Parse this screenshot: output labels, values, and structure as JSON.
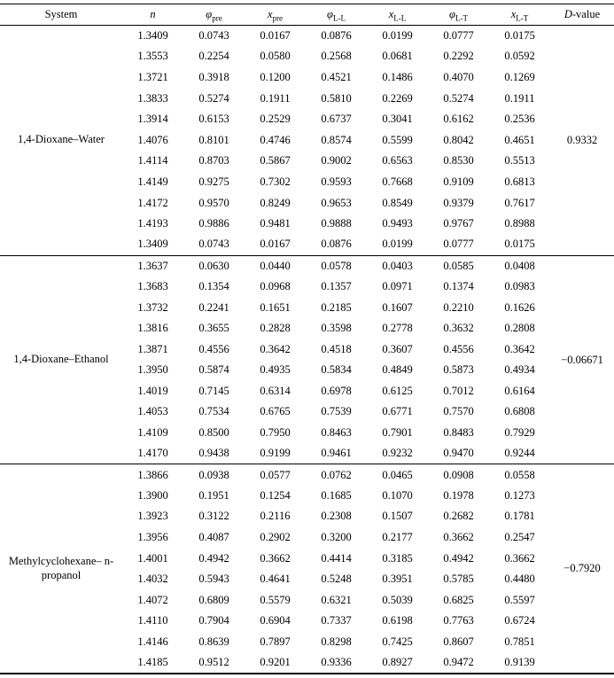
{
  "table": {
    "headers": [
      {
        "name": "system",
        "base": "System",
        "italic": false,
        "sub": "",
        "suffix": ""
      },
      {
        "name": "n",
        "base": "n",
        "italic": true,
        "sub": "",
        "suffix": ""
      },
      {
        "name": "phi-pre",
        "base": "φ",
        "italic": true,
        "sub": "pre",
        "suffix": ""
      },
      {
        "name": "x-pre",
        "base": "x",
        "italic": true,
        "sub": "pre",
        "suffix": ""
      },
      {
        "name": "phi-l-l",
        "base": "φ",
        "italic": true,
        "sub": "L-L",
        "suffix": ""
      },
      {
        "name": "x-l-l",
        "base": "x",
        "italic": true,
        "sub": "L-L",
        "suffix": ""
      },
      {
        "name": "phi-l-t",
        "base": "φ",
        "italic": true,
        "sub": "L-T",
        "suffix": ""
      },
      {
        "name": "x-l-t",
        "base": "x",
        "italic": true,
        "sub": "L-T",
        "suffix": ""
      },
      {
        "name": "d-value",
        "base": "D",
        "italic": true,
        "sub": "",
        "suffix": "-value"
      }
    ],
    "sections": [
      {
        "system": "1,4-Dioxane–Water",
        "d_value": "0.9332",
        "rows": [
          [
            "1.3409",
            "0.0743",
            "0.0167",
            "0.0876",
            "0.0199",
            "0.0777",
            "0.0175"
          ],
          [
            "1.3553",
            "0.2254",
            "0.0580",
            "0.2568",
            "0.0681",
            "0.2292",
            "0.0592"
          ],
          [
            "1.3721",
            "0.3918",
            "0.1200",
            "0.4521",
            "0.1486",
            "0.4070",
            "0.1269"
          ],
          [
            "1.3833",
            "0.5274",
            "0.1911",
            "0.5810",
            "0.2269",
            "0.5274",
            "0.1911"
          ],
          [
            "1.3914",
            "0.6153",
            "0.2529",
            "0.6737",
            "0.3041",
            "0.6162",
            "0.2536"
          ],
          [
            "1.4076",
            "0.8101",
            "0.4746",
            "0.8574",
            "0.5599",
            "0.8042",
            "0.4651"
          ],
          [
            "1.4114",
            "0.8703",
            "0.5867",
            "0.9002",
            "0.6563",
            "0.8530",
            "0.5513"
          ],
          [
            "1.4149",
            "0.9275",
            "0.7302",
            "0.9593",
            "0.7668",
            "0.9109",
            "0.6813"
          ],
          [
            "1.4172",
            "0.9570",
            "0.8249",
            "0.9653",
            "0.8549",
            "0.9379",
            "0.7617"
          ],
          [
            "1.4193",
            "0.9886",
            "0.9481",
            "0.9888",
            "0.9493",
            "0.9767",
            "0.8988"
          ],
          [
            "1.3409",
            "0.0743",
            "0.0167",
            "0.0876",
            "0.0199",
            "0.0777",
            "0.0175"
          ]
        ]
      },
      {
        "system": "1,4-Dioxane–Ethanol",
        "d_value": "−0.06671",
        "rows": [
          [
            "1.3637",
            "0.0630",
            "0.0440",
            "0.0578",
            "0.0403",
            "0.0585",
            "0.0408"
          ],
          [
            "1.3683",
            "0.1354",
            "0.0968",
            "0.1357",
            "0.0971",
            "0.1374",
            "0.0983"
          ],
          [
            "1.3732",
            "0.2241",
            "0.1651",
            "0.2185",
            "0.1607",
            "0.2210",
            "0.1626"
          ],
          [
            "1.3816",
            "0.3655",
            "0.2828",
            "0.3598",
            "0.2778",
            "0.3632",
            "0.2808"
          ],
          [
            "1.3871",
            "0.4556",
            "0.3642",
            "0.4518",
            "0.3607",
            "0.4556",
            "0.3642"
          ],
          [
            "1.3950",
            "0.5874",
            "0.4935",
            "0.5834",
            "0.4849",
            "0.5873",
            "0.4934"
          ],
          [
            "1.4019",
            "0.7145",
            "0.6314",
            "0.6978",
            "0.6125",
            "0.7012",
            "0.6164"
          ],
          [
            "1.4053",
            "0.7534",
            "0.6765",
            "0.7539",
            "0.6771",
            "0.7570",
            "0.6808"
          ],
          [
            "1.4109",
            "0.8500",
            "0.7950",
            "0.8463",
            "0.7901",
            "0.8483",
            "0.7929"
          ],
          [
            "1.4170",
            "0.9438",
            "0.9199",
            "0.9461",
            "0.9232",
            "0.9470",
            "0.9244"
          ]
        ]
      },
      {
        "system": "Methylcyclohexane– n-propanol",
        "d_value": "−0.7920",
        "rows": [
          [
            "1.3866",
            "0.0938",
            "0.0577",
            "0.0762",
            "0.0465",
            "0.0908",
            "0.0558"
          ],
          [
            "1.3900",
            "0.1951",
            "0.1254",
            "0.1685",
            "0.1070",
            "0.1978",
            "0.1273"
          ],
          [
            "1.3923",
            "0.3122",
            "0.2116",
            "0.2308",
            "0.1507",
            "0.2682",
            "0.1781"
          ],
          [
            "1.3956",
            "0.4087",
            "0.2902",
            "0.3200",
            "0.2177",
            "0.3662",
            "0.2547"
          ],
          [
            "1.4001",
            "0.4942",
            "0.3662",
            "0.4414",
            "0.3185",
            "0.4942",
            "0.3662"
          ],
          [
            "1.4032",
            "0.5943",
            "0.4641",
            "0.5248",
            "0.3951",
            "0.5785",
            "0.4480"
          ],
          [
            "1.4072",
            "0.6809",
            "0.5579",
            "0.6321",
            "0.5039",
            "0.6825",
            "0.5597"
          ],
          [
            "1.4110",
            "0.7904",
            "0.6904",
            "0.7337",
            "0.6198",
            "0.7763",
            "0.6724"
          ],
          [
            "1.4146",
            "0.8639",
            "0.7897",
            "0.8298",
            "0.7425",
            "0.8607",
            "0.7851"
          ],
          [
            "1.4185",
            "0.9512",
            "0.9201",
            "0.9336",
            "0.8927",
            "0.9472",
            "0.9139"
          ]
        ]
      }
    ]
  }
}
